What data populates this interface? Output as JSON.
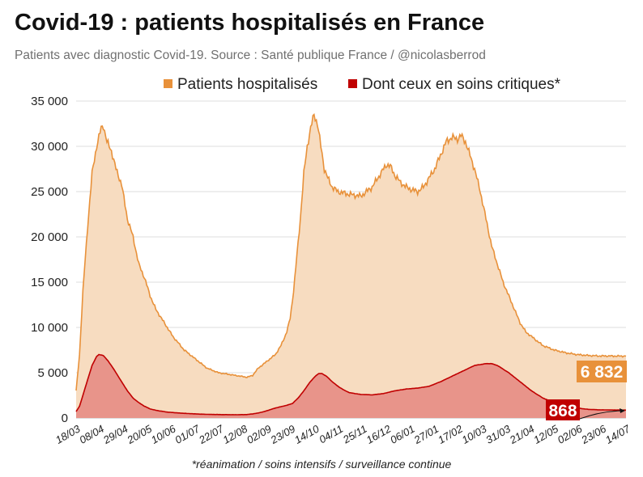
{
  "title": "Covid-19 : patients hospitalisés en France",
  "subtitle": "Patients avec diagnostic Covid-19. Source : Santé publique France / @nicolasberrod",
  "footnote": "*réanimation / soins intensifs / surveillance continue",
  "colors": {
    "hosp_line": "#e8913a",
    "hosp_fill": "#f7dcc0",
    "crit_line": "#c00000",
    "crit_fill": "#e8948a",
    "grid": "#dddddd",
    "axis_text": "#222222"
  },
  "chart_data": {
    "type": "area",
    "title": "Covid-19 : patients hospitalisés en France",
    "ylim": [
      0,
      35000
    ],
    "yticks": [
      0,
      5000,
      10000,
      15000,
      20000,
      25000,
      30000,
      35000
    ],
    "ytick_labels": [
      "0",
      "5 000",
      "10 000",
      "15 000",
      "20 000",
      "25 000",
      "30 000",
      "35 000"
    ],
    "grid": true,
    "legend_position": "top-right",
    "x_day_range": [
      0,
      483
    ],
    "xticks": [
      {
        "day": 0,
        "label": "18/03"
      },
      {
        "day": 21,
        "label": "08/04"
      },
      {
        "day": 42,
        "label": "29/04"
      },
      {
        "day": 63,
        "label": "20/05"
      },
      {
        "day": 84,
        "label": "10/06"
      },
      {
        "day": 105,
        "label": "01/07"
      },
      {
        "day": 126,
        "label": "22/07"
      },
      {
        "day": 147,
        "label": "12/08"
      },
      {
        "day": 168,
        "label": "02/09"
      },
      {
        "day": 189,
        "label": "23/09"
      },
      {
        "day": 210,
        "label": "14/10"
      },
      {
        "day": 231,
        "label": "04/11"
      },
      {
        "day": 252,
        "label": "25/11"
      },
      {
        "day": 273,
        "label": "16/12"
      },
      {
        "day": 294,
        "label": "06/01"
      },
      {
        "day": 315,
        "label": "27/01"
      },
      {
        "day": 336,
        "label": "17/02"
      },
      {
        "day": 357,
        "label": "10/03"
      },
      {
        "day": 378,
        "label": "31/03"
      },
      {
        "day": 399,
        "label": "21/04"
      },
      {
        "day": 420,
        "label": "12/05"
      },
      {
        "day": 441,
        "label": "02/06"
      },
      {
        "day": 462,
        "label": "23/06"
      },
      {
        "day": 483,
        "label": "14/07"
      }
    ],
    "series": [
      {
        "name": "Patients hospitalisés",
        "points": [
          [
            0,
            3000
          ],
          [
            3,
            7000
          ],
          [
            6,
            14000
          ],
          [
            10,
            21000
          ],
          [
            14,
            27000
          ],
          [
            18,
            30000
          ],
          [
            22,
            32000
          ],
          [
            24,
            32300
          ],
          [
            27,
            30500
          ],
          [
            31,
            29500
          ],
          [
            35,
            27500
          ],
          [
            40,
            25800
          ],
          [
            45,
            22000
          ],
          [
            50,
            20000
          ],
          [
            55,
            17000
          ],
          [
            60,
            15500
          ],
          [
            65,
            13500
          ],
          [
            70,
            12000
          ],
          [
            75,
            11000
          ],
          [
            80,
            10000
          ],
          [
            85,
            9000
          ],
          [
            95,
            7500
          ],
          [
            105,
            6500
          ],
          [
            115,
            5500
          ],
          [
            125,
            5000
          ],
          [
            135,
            4800
          ],
          [
            145,
            4600
          ],
          [
            150,
            4500
          ],
          [
            155,
            4700
          ],
          [
            160,
            5500
          ],
          [
            165,
            6000
          ],
          [
            170,
            6500
          ],
          [
            175,
            7000
          ],
          [
            180,
            8000
          ],
          [
            185,
            9500
          ],
          [
            188,
            11000
          ],
          [
            191,
            14000
          ],
          [
            194,
            18000
          ],
          [
            197,
            22000
          ],
          [
            200,
            27000
          ],
          [
            203,
            30000
          ],
          [
            206,
            32000
          ],
          [
            209,
            33500
          ],
          [
            212,
            32500
          ],
          [
            215,
            30000
          ],
          [
            218,
            27500
          ],
          [
            221,
            26500
          ],
          [
            225,
            25500
          ],
          [
            230,
            25000
          ],
          [
            240,
            24700
          ],
          [
            250,
            24500
          ],
          [
            255,
            25000
          ],
          [
            260,
            25500
          ],
          [
            265,
            26500
          ],
          [
            270,
            27500
          ],
          [
            273,
            28000
          ],
          [
            276,
            27800
          ],
          [
            280,
            26800
          ],
          [
            285,
            26000
          ],
          [
            290,
            25500
          ],
          [
            295,
            25200
          ],
          [
            300,
            25000
          ],
          [
            305,
            25500
          ],
          [
            310,
            26500
          ],
          [
            315,
            27500
          ],
          [
            320,
            29000
          ],
          [
            325,
            30500
          ],
          [
            330,
            31000
          ],
          [
            335,
            30800
          ],
          [
            338,
            31200
          ],
          [
            342,
            30500
          ],
          [
            346,
            29000
          ],
          [
            350,
            27500
          ],
          [
            355,
            25000
          ],
          [
            360,
            22000
          ],
          [
            365,
            19000
          ],
          [
            370,
            17000
          ],
          [
            375,
            15000
          ],
          [
            380,
            13500
          ],
          [
            385,
            12000
          ],
          [
            390,
            10500
          ],
          [
            395,
            9500
          ],
          [
            400,
            9000
          ],
          [
            410,
            8000
          ],
          [
            420,
            7500
          ],
          [
            430,
            7200
          ],
          [
            440,
            7000
          ],
          [
            450,
            6900
          ],
          [
            460,
            6850
          ],
          [
            483,
            6832
          ]
        ]
      },
      {
        "name": "Dont ceux en soins critiques*",
        "points": [
          [
            0,
            700
          ],
          [
            3,
            1300
          ],
          [
            6,
            2500
          ],
          [
            10,
            4200
          ],
          [
            14,
            5800
          ],
          [
            18,
            6800
          ],
          [
            20,
            7000
          ],
          [
            24,
            6900
          ],
          [
            28,
            6300
          ],
          [
            32,
            5600
          ],
          [
            36,
            4800
          ],
          [
            40,
            4000
          ],
          [
            45,
            3000
          ],
          [
            50,
            2200
          ],
          [
            55,
            1700
          ],
          [
            60,
            1300
          ],
          [
            65,
            1000
          ],
          [
            70,
            850
          ],
          [
            80,
            650
          ],
          [
            90,
            550
          ],
          [
            100,
            480
          ],
          [
            110,
            420
          ],
          [
            120,
            390
          ],
          [
            130,
            370
          ],
          [
            140,
            360
          ],
          [
            150,
            380
          ],
          [
            155,
            450
          ],
          [
            160,
            550
          ],
          [
            165,
            700
          ],
          [
            170,
            900
          ],
          [
            175,
            1100
          ],
          [
            180,
            1250
          ],
          [
            185,
            1400
          ],
          [
            190,
            1600
          ],
          [
            195,
            2200
          ],
          [
            200,
            3000
          ],
          [
            205,
            3900
          ],
          [
            210,
            4600
          ],
          [
            213,
            4900
          ],
          [
            216,
            4900
          ],
          [
            220,
            4600
          ],
          [
            225,
            4000
          ],
          [
            230,
            3500
          ],
          [
            235,
            3100
          ],
          [
            240,
            2800
          ],
          [
            250,
            2600
          ],
          [
            260,
            2550
          ],
          [
            270,
            2700
          ],
          [
            280,
            3000
          ],
          [
            290,
            3200
          ],
          [
            300,
            3300
          ],
          [
            310,
            3500
          ],
          [
            320,
            4000
          ],
          [
            330,
            4600
          ],
          [
            340,
            5200
          ],
          [
            350,
            5800
          ],
          [
            360,
            6000
          ],
          [
            365,
            6000
          ],
          [
            370,
            5800
          ],
          [
            380,
            5000
          ],
          [
            390,
            4000
          ],
          [
            400,
            3000
          ],
          [
            410,
            2200
          ],
          [
            420,
            1700
          ],
          [
            430,
            1300
          ],
          [
            440,
            1100
          ],
          [
            450,
            950
          ],
          [
            460,
            900
          ],
          [
            483,
            868
          ]
        ]
      }
    ],
    "end_labels": {
      "hospitalises": "6 832",
      "critiques": "868"
    }
  }
}
